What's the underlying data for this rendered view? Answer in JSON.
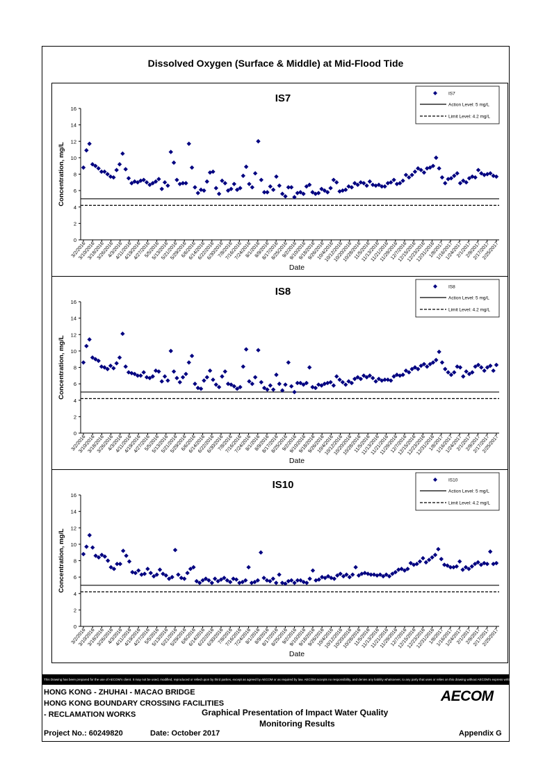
{
  "page": {
    "main_title": "Dissolved Oxygen (Surface & Middle) at Mid-Flood Tide",
    "disclaimer": "This Drawing has been prepared for the use of AECOM's client. It may not be used, modified, reproduced or relied upon by third parties, except as agreed by AECOM or as required by law. AECOM accepts no responsibility, and denies any liability whatsoever, to any party that uses or relies on this drawing without AECOM's express written consent.",
    "project_line1": "HONG KONG - ZHUHAI - MACAO BRIDGE",
    "project_line2": "HONG KONG BOUNDARY CROSSING FACILITIES",
    "project_line3": "- RECLAMATION WORKS",
    "doc_title_line1": "Graphical Presentation of Impact Water Quality",
    "doc_title_line2": "Monitoring Results",
    "project_no": "Project No.: 60249820",
    "date": "Date: October 2017",
    "appendix": "Appendix G",
    "logo": "AECOM"
  },
  "chart_data": [
    {
      "type": "scatter",
      "title": "IS7",
      "xlabel": "Date",
      "ylabel": "Concentration, mg/L",
      "ylim": [
        0,
        16
      ],
      "yticks": [
        0,
        2,
        4,
        6,
        8,
        10,
        12,
        14,
        16
      ],
      "xticks": [
        "3/2/2016",
        "3/10/2016",
        "3/18/2016",
        "3/26/2016",
        "4/3/2016",
        "4/11/2016",
        "4/19/2016",
        "4/27/2016",
        "5/5/2016",
        "5/13/2016",
        "5/21/2016",
        "5/29/2016",
        "6/6/2016",
        "6/14/2016",
        "6/22/2016",
        "6/30/2016",
        "7/8/2016",
        "7/16/2016",
        "7/24/2016",
        "8/1/2016",
        "8/9/2016",
        "8/17/2016",
        "8/25/2016",
        "9/2/2016",
        "9/10/2016",
        "9/18/2016",
        "9/26/2016",
        "10/4/2016",
        "10/12/2016",
        "10/20/2016",
        "10/28/2016",
        "11/5/2016",
        "11/13/2016",
        "11/21/2016",
        "11/29/2016",
        "12/7/2016",
        "12/15/2016",
        "12/23/2016",
        "12/31/2016",
        "1/8/2017",
        "1/16/2017",
        "1/24/2017",
        "2/1/2017",
        "2/9/2017",
        "2/17/2017",
        "2/25/2017"
      ],
      "grid": false,
      "legend_position": "top-right",
      "series": [
        {
          "name": "IS7",
          "marker": "diamond",
          "color": "#000080",
          "values": [
            8.8,
            10.9,
            11.7,
            9.2,
            9.0,
            8.7,
            8.3,
            8.3,
            8.0,
            7.7,
            7.6,
            8.5,
            9.2,
            10.5,
            8.6,
            7.5,
            6.9,
            7.1,
            7.0,
            7.2,
            7.3,
            7.0,
            6.7,
            6.9,
            7.1,
            7.4,
            6.2,
            7.0,
            6.6,
            10.7,
            9.4,
            7.3,
            6.8,
            6.9,
            6.9,
            11.7,
            8.8,
            6.4,
            5.7,
            6.1,
            6.0,
            7.1,
            8.2,
            8.3,
            6.3,
            5.6,
            7.2,
            6.9,
            6.0,
            6.2,
            6.8,
            6.1,
            6.3,
            7.8,
            8.9,
            6.8,
            6.4,
            8.1,
            12.0,
            7.3,
            5.8,
            5.8,
            6.5,
            6.1,
            7.7,
            6.6,
            5.6,
            5.3,
            6.4,
            6.4,
            5.2,
            5.7,
            5.8,
            5.6,
            6.5,
            6.7,
            5.8,
            5.6,
            5.7,
            6.2,
            6.0,
            5.8,
            6.3,
            7.3,
            7.0,
            5.9,
            6.0,
            6.1,
            6.5,
            6.4,
            6.9,
            6.7,
            7.0,
            6.9,
            6.6,
            7.1,
            6.7,
            6.6,
            6.7,
            6.5,
            6.5,
            6.9,
            7.0,
            7.3,
            6.8,
            6.9,
            7.2,
            7.9,
            7.6,
            7.9,
            8.3,
            8.7,
            8.5,
            8.2,
            8.7,
            8.8,
            9.0,
            10.0,
            8.7,
            7.6,
            6.9,
            7.4,
            7.5,
            7.8,
            8.1,
            6.9,
            7.2,
            7.0,
            7.5,
            7.7,
            7.6,
            8.5,
            8.1,
            7.9,
            8.0,
            8.1,
            7.8,
            7.7
          ]
        }
      ],
      "reference_lines": [
        {
          "name": "Action Level: 5 mg/L",
          "value": 5,
          "style": "solid"
        },
        {
          "name": "Limit Level: 4.2 mg/L",
          "value": 4.2,
          "style": "dashed"
        }
      ]
    },
    {
      "type": "scatter",
      "title": "IS8",
      "xlabel": "Date",
      "ylabel": "Concentration, mg/L",
      "ylim": [
        0,
        16
      ],
      "yticks": [
        0,
        2,
        4,
        6,
        8,
        10,
        12,
        14,
        16
      ],
      "xticks": [
        "3/2/2016",
        "3/10/2016",
        "3/18/2016",
        "3/26/2016",
        "4/3/2016",
        "4/11/2016",
        "4/19/2016",
        "4/27/2016",
        "5/5/2016",
        "5/13/2016",
        "5/21/2016",
        "5/29/2016",
        "6/6/2016",
        "6/14/2016",
        "6/22/2016",
        "6/30/2016",
        "7/8/2016",
        "7/16/2016",
        "7/24/2016",
        "8/1/2016",
        "8/9/2016",
        "8/17/2016",
        "8/25/2016",
        "9/2/2016",
        "9/10/2016",
        "9/18/2016",
        "9/26/2016",
        "10/4/2016",
        "10/12/2016",
        "10/20/2016",
        "10/28/2016",
        "11/5/2016",
        "11/13/2016",
        "11/21/2016",
        "11/29/2016",
        "12/7/2016",
        "12/15/2016",
        "12/23/2016",
        "12/31/2016",
        "1/8/2017",
        "1/16/2017",
        "1/24/2017",
        "2/1/2017",
        "2/9/2017",
        "2/17/2017",
        "2/25/2017"
      ],
      "grid": false,
      "legend_position": "top-right",
      "series": [
        {
          "name": "IS8",
          "marker": "diamond",
          "color": "#000080",
          "values": [
            8.6,
            10.6,
            11.4,
            9.2,
            9.0,
            8.8,
            8.1,
            8.0,
            7.8,
            8.2,
            7.9,
            8.5,
            9.2,
            12.1,
            8.1,
            7.4,
            7.3,
            7.2,
            7.0,
            7.0,
            7.4,
            6.8,
            6.7,
            6.9,
            7.6,
            7.5,
            6.3,
            6.9,
            6.4,
            10.0,
            7.5,
            6.7,
            6.2,
            6.8,
            7.2,
            8.6,
            9.4,
            6.0,
            5.5,
            5.4,
            6.4,
            6.8,
            7.6,
            6.5,
            5.9,
            5.6,
            6.9,
            7.5,
            6.0,
            5.9,
            5.7,
            5.4,
            5.6,
            8.1,
            10.2,
            6.3,
            6.0,
            6.8,
            10.1,
            6.2,
            5.5,
            5.3,
            5.8,
            5.3,
            7.1,
            6.0,
            5.2,
            5.9,
            8.6,
            5.7,
            5.0,
            6.1,
            6.1,
            5.9,
            6.1,
            8.0,
            5.6,
            5.5,
            5.9,
            5.8,
            6.0,
            6.1,
            6.2,
            5.8,
            6.9,
            6.5,
            6.2,
            5.9,
            6.3,
            6.1,
            6.6,
            6.8,
            6.6,
            7.0,
            6.8,
            7.0,
            6.7,
            6.3,
            6.6,
            6.4,
            6.5,
            6.5,
            6.4,
            6.9,
            7.1,
            7.0,
            7.1,
            7.6,
            7.4,
            7.8,
            8.0,
            7.8,
            8.2,
            8.4,
            8.1,
            8.4,
            8.6,
            8.9,
            9.9,
            8.6,
            7.8,
            7.4,
            7.1,
            7.4,
            8.1,
            8.0,
            6.9,
            7.5,
            7.2,
            7.4,
            8.1,
            8.3,
            8.0,
            7.6,
            8.0,
            8.2,
            7.6,
            8.3
          ]
        }
      ],
      "reference_lines": [
        {
          "name": "Action Level: 5 mg/L",
          "value": 5,
          "style": "solid"
        },
        {
          "name": "Limit Level: 4.2 mg/L",
          "value": 4.2,
          "style": "dashed"
        }
      ]
    },
    {
      "type": "scatter",
      "title": "IS10",
      "xlabel": "Date",
      "ylabel": "Concentration, mg/L",
      "ylim": [
        0,
        16
      ],
      "yticks": [
        0,
        2,
        4,
        6,
        8,
        10,
        12,
        14,
        16
      ],
      "xticks": [
        "3/2/2016",
        "3/10/2016",
        "3/18/2016",
        "3/26/2016",
        "4/3/2016",
        "4/11/2016",
        "4/19/2016",
        "4/27/2016",
        "5/5/2016",
        "5/13/2016",
        "5/21/2016",
        "5/29/2016",
        "6/6/2016",
        "6/14/2016",
        "6/22/2016",
        "6/30/2016",
        "7/8/2016",
        "7/16/2016",
        "7/24/2016",
        "8/1/2016",
        "8/9/2016",
        "8/17/2016",
        "8/25/2016",
        "9/2/2016",
        "9/10/2016",
        "9/18/2016",
        "9/26/2016",
        "10/4/2016",
        "10/12/2016",
        "10/20/2016",
        "10/28/2016",
        "11/5/2016",
        "11/13/2016",
        "11/21/2016",
        "11/29/2016",
        "12/7/2016",
        "12/15/2016",
        "12/23/2016",
        "12/31/2016",
        "1/8/2017",
        "1/16/2017",
        "1/24/2017",
        "2/1/2017",
        "2/9/2017",
        "2/17/2017",
        "2/25/2017"
      ],
      "grid": false,
      "legend_position": "top-right",
      "series": [
        {
          "name": "IS10",
          "marker": "diamond",
          "color": "#000080",
          "values": [
            8.8,
            9.7,
            11.1,
            9.6,
            8.6,
            8.4,
            8.7,
            8.5,
            8.0,
            7.2,
            7.0,
            7.6,
            7.6,
            9.2,
            8.6,
            7.9,
            6.6,
            6.5,
            6.8,
            6.3,
            6.4,
            7.0,
            6.5,
            6.1,
            6.3,
            6.9,
            6.4,
            6.2,
            5.8,
            6.0,
            9.3,
            6.3,
            5.9,
            5.8,
            6.5,
            7.0,
            7.2,
            5.5,
            5.3,
            5.6,
            5.8,
            5.6,
            5.3,
            5.8,
            5.5,
            5.7,
            5.9,
            5.6,
            5.4,
            5.8,
            5.7,
            5.3,
            5.4,
            5.6,
            7.2,
            5.3,
            5.4,
            5.6,
            9.0,
            5.9,
            5.6,
            5.5,
            5.8,
            5.3,
            6.3,
            5.3,
            5.2,
            5.5,
            5.6,
            5.3,
            5.6,
            5.6,
            5.4,
            5.3,
            5.8,
            6.8,
            5.6,
            5.7,
            6.0,
            5.9,
            6.1,
            5.9,
            5.8,
            6.2,
            6.4,
            6.1,
            6.3,
            6.0,
            6.3,
            7.2,
            6.2,
            6.4,
            6.5,
            6.4,
            6.3,
            6.3,
            6.2,
            6.3,
            6.1,
            6.3,
            6.1,
            6.4,
            6.6,
            6.9,
            7.0,
            6.8,
            7.0,
            7.7,
            7.5,
            7.6,
            7.9,
            8.3,
            7.8,
            8.1,
            8.4,
            8.7,
            9.4,
            8.2,
            7.5,
            7.4,
            7.2,
            7.2,
            7.3,
            7.9,
            6.9,
            7.2,
            7.0,
            7.3,
            7.6,
            7.8,
            7.5,
            7.7,
            7.6,
            9.1,
            7.6,
            7.7
          ]
        }
      ],
      "reference_lines": [
        {
          "name": "Action Level: 5 mg/L",
          "value": 5,
          "style": "solid"
        },
        {
          "name": "Limit Level: 4.2 mg/L",
          "value": 4.2,
          "style": "dashed"
        }
      ]
    }
  ]
}
